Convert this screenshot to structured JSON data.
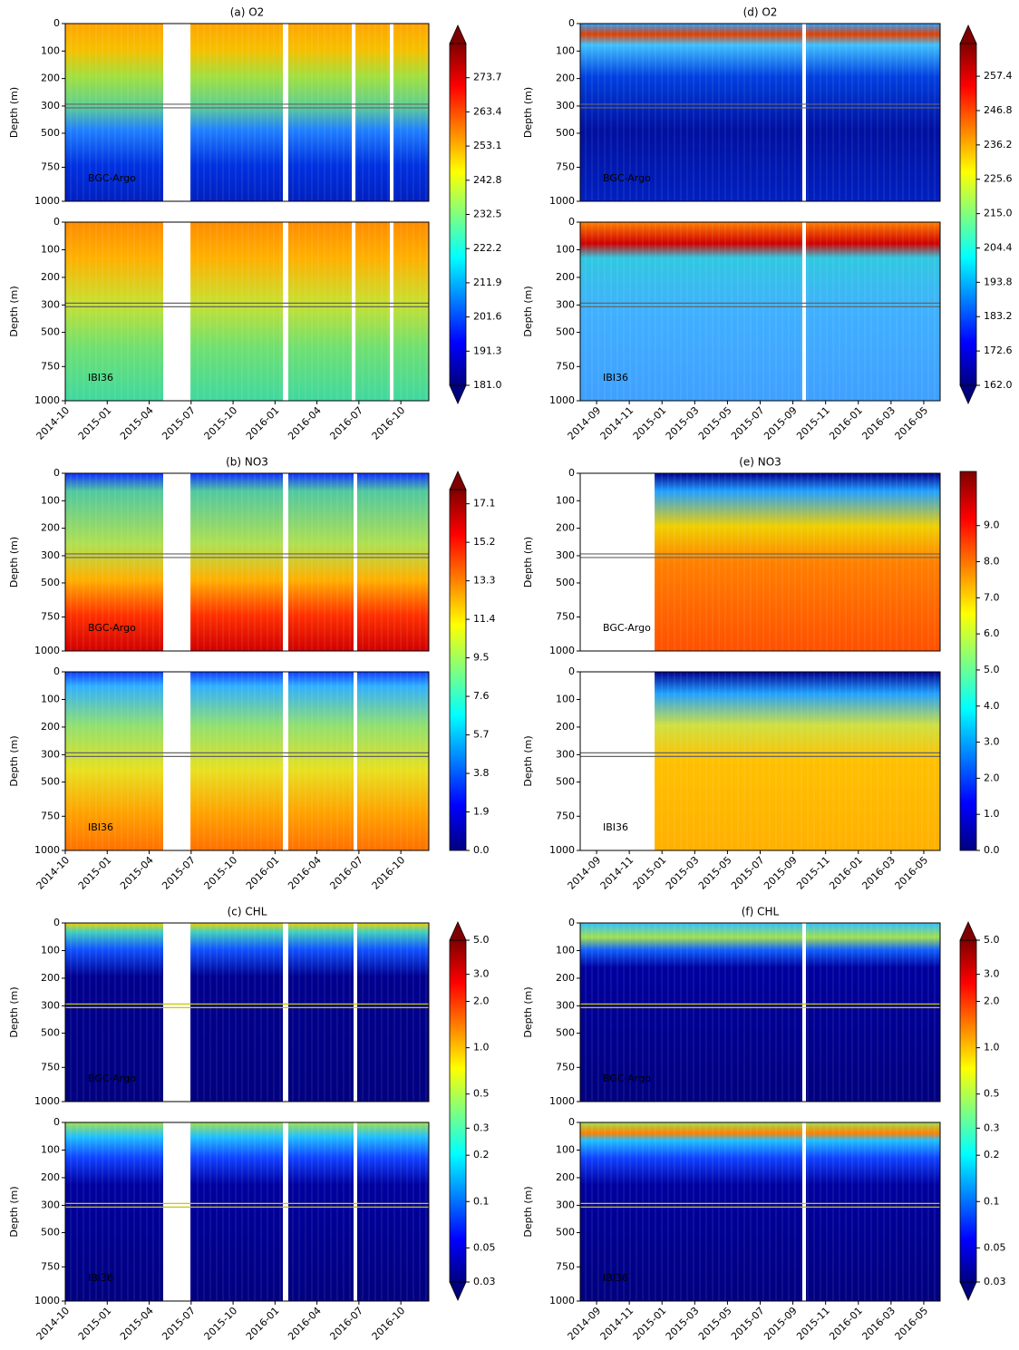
{
  "chart_data": [
    {
      "type": "heatmap",
      "title": "(a) O2",
      "xticks": [
        "2014-10",
        "2015-01",
        "2015-04",
        "2015-07",
        "2015-10",
        "2016-01",
        "2016-04",
        "2016-07",
        "2016-10"
      ],
      "xlim": [
        "2014-10",
        "2016-12"
      ],
      "colorbar": {
        "ticks": [
          {
            "value": 181,
            "label": "181.0"
          },
          191.3,
          201.6,
          211.9,
          222.2,
          232.5,
          242.8,
          253.1,
          263.4,
          273.7
        ],
        "clim": [
          181,
          284
        ],
        "extend": "both",
        "log": false
      },
      "subplots": [
        {
          "label": "BGC-Argo",
          "ylabel": "Depth (m)",
          "yticks": [
            0,
            100,
            200,
            300,
            500,
            750,
            1000
          ],
          "ylim_upper": [
            0,
            300
          ],
          "ylim_lower": [
            300,
            1000
          ]
        },
        {
          "label": "IBI36",
          "ylabel": "Depth (m)",
          "yticks": [
            0,
            100,
            200,
            300,
            500,
            750,
            1000
          ],
          "ylim_upper": [
            0,
            300
          ],
          "ylim_lower": [
            300,
            1000
          ]
        }
      ]
    },
    {
      "type": "heatmap",
      "title": "(b) NO3",
      "xticks": [
        "2014-10",
        "2015-01",
        "2015-04",
        "2015-07",
        "2015-10",
        "2016-01",
        "2016-04",
        "2016-07",
        "2016-10"
      ],
      "xlim": [
        "2014-10",
        "2016-12"
      ],
      "colorbar": {
        "ticks": [
          {
            "value": 0,
            "label": "0.0"
          },
          1.9,
          3.8,
          5.7,
          7.6,
          9.5,
          11.4,
          13.3,
          15.2,
          17.1
        ],
        "clim": [
          0,
          17.8
        ],
        "extend": "max",
        "log": false
      },
      "subplots": [
        {
          "label": "BGC-Argo",
          "ylabel": "Depth (m)",
          "yticks": [
            0,
            100,
            200,
            300,
            500,
            750,
            1000
          ],
          "ylim_upper": [
            0,
            300
          ],
          "ylim_lower": [
            300,
            1000
          ]
        },
        {
          "label": "IBI36",
          "ylabel": "Depth (m)",
          "yticks": [
            0,
            100,
            200,
            300,
            500,
            750,
            1000
          ],
          "ylim_upper": [
            0,
            300
          ],
          "ylim_lower": [
            300,
            1000
          ]
        }
      ]
    },
    {
      "type": "heatmap",
      "title": "(c) CHL",
      "xticks": [
        "2014-10",
        "2015-01",
        "2015-04",
        "2015-07",
        "2015-10",
        "2016-01",
        "2016-04",
        "2016-07",
        "2016-10"
      ],
      "xlim": [
        "2014-10",
        "2016-12"
      ],
      "colorbar": {
        "ticks": [
          0.03,
          0.05,
          0.1,
          0.2,
          0.3,
          0.5,
          {
            "value": 1,
            "label": "1.0"
          },
          {
            "value": 2,
            "label": "2.0"
          },
          {
            "value": 3,
            "label": "3.0"
          },
          {
            "value": 5,
            "label": "5.0"
          }
        ],
        "clim": [
          0.03,
          5
        ],
        "extend": "both",
        "log": true
      },
      "subplots": [
        {
          "label": "BGC-Argo",
          "ylabel": "Depth (m)",
          "yticks": [
            0,
            100,
            200,
            300,
            500,
            750,
            1000
          ],
          "ylim_upper": [
            0,
            300
          ],
          "ylim_lower": [
            300,
            1000
          ]
        },
        {
          "label": "IBI36",
          "ylabel": "Depth (m)",
          "yticks": [
            0,
            100,
            200,
            300,
            500,
            750,
            1000
          ],
          "ylim_upper": [
            0,
            300
          ],
          "ylim_lower": [
            300,
            1000
          ]
        }
      ]
    },
    {
      "type": "heatmap",
      "title": "(d) O2",
      "xticks": [
        "2014-09",
        "2014-11",
        "2015-01",
        "2015-03",
        "2015-05",
        "2015-07",
        "2015-09",
        "2015-11",
        "2016-01",
        "2016-03",
        "2016-05"
      ],
      "xlim": [
        "2014-08",
        "2016-06"
      ],
      "colorbar": {
        "ticks": [
          {
            "value": 162,
            "label": "162.0"
          },
          172.6,
          183.2,
          193.8,
          204.4,
          {
            "value": 215,
            "label": "215.0"
          },
          225.6,
          236.2,
          246.8,
          257.4
        ],
        "clim": [
          162,
          267.5
        ],
        "extend": "both",
        "log": false
      },
      "subplots": [
        {
          "label": "BGC-Argo",
          "ylabel": "Depth (m)",
          "yticks": [
            0,
            100,
            200,
            300,
            500,
            750,
            1000
          ],
          "ylim_upper": [
            0,
            300
          ],
          "ylim_lower": [
            300,
            1000
          ]
        },
        {
          "label": "IBI36",
          "ylabel": "Depth (m)",
          "yticks": [
            0,
            100,
            200,
            300,
            500,
            750,
            1000
          ],
          "ylim_upper": [
            0,
            300
          ],
          "ylim_lower": [
            300,
            1000
          ]
        }
      ]
    },
    {
      "type": "heatmap",
      "title": "(e) NO3",
      "xticks": [
        "2014-09",
        "2014-11",
        "2015-01",
        "2015-03",
        "2015-05",
        "2015-07",
        "2015-09",
        "2015-11",
        "2016-01",
        "2016-03",
        "2016-05"
      ],
      "xlim": [
        "2014-08",
        "2016-06"
      ],
      "colorbar": {
        "ticks": [
          {
            "value": 0,
            "label": "0.0"
          },
          {
            "value": 1,
            "label": "1.0"
          },
          {
            "value": 2,
            "label": "2.0"
          },
          {
            "value": 3,
            "label": "3.0"
          },
          {
            "value": 4,
            "label": "4.0"
          },
          {
            "value": 5,
            "label": "5.0"
          },
          {
            "value": 6,
            "label": "6.0"
          },
          {
            "value": 7,
            "label": "7.0"
          },
          {
            "value": 8,
            "label": "8.0"
          },
          {
            "value": 9,
            "label": "9.0"
          }
        ],
        "clim": [
          0,
          10.5
        ],
        "extend": "neither",
        "log": false
      },
      "subplots": [
        {
          "label": "BGC-Argo",
          "ylabel": "Depth (m)",
          "yticks": [
            0,
            100,
            200,
            300,
            500,
            750,
            1000
          ],
          "ylim_upper": [
            0,
            300
          ],
          "ylim_lower": [
            300,
            1000
          ]
        },
        {
          "label": "IBI36",
          "ylabel": "Depth (m)",
          "yticks": [
            0,
            100,
            200,
            300,
            500,
            750,
            1000
          ],
          "ylim_upper": [
            0,
            300
          ],
          "ylim_lower": [
            300,
            1000
          ]
        }
      ]
    },
    {
      "type": "heatmap",
      "title": "(f) CHL",
      "xticks": [
        "2014-09",
        "2014-11",
        "2015-01",
        "2015-03",
        "2015-05",
        "2015-07",
        "2015-09",
        "2015-11",
        "2016-01",
        "2016-03",
        "2016-05"
      ],
      "xlim": [
        "2014-08",
        "2016-06"
      ],
      "colorbar": {
        "ticks": [
          0.03,
          0.05,
          0.1,
          0.2,
          0.3,
          0.5,
          {
            "value": 1,
            "label": "1.0"
          },
          {
            "value": 2,
            "label": "2.0"
          },
          {
            "value": 3,
            "label": "3.0"
          },
          {
            "value": 5,
            "label": "5.0"
          }
        ],
        "clim": [
          0.03,
          5
        ],
        "extend": "both",
        "log": true
      },
      "subplots": [
        {
          "label": "BGC-Argo",
          "ylabel": "Depth (m)",
          "yticks": [
            0,
            100,
            200,
            300,
            500,
            750,
            1000
          ],
          "ylim_upper": [
            0,
            300
          ],
          "ylim_lower": [
            300,
            1000
          ]
        },
        {
          "label": "IBI36",
          "ylabel": "Depth (m)",
          "yticks": [
            0,
            100,
            200,
            300,
            500,
            750,
            1000
          ],
          "ylim_upper": [
            0,
            300
          ],
          "ylim_lower": [
            300,
            1000
          ]
        }
      ]
    }
  ]
}
